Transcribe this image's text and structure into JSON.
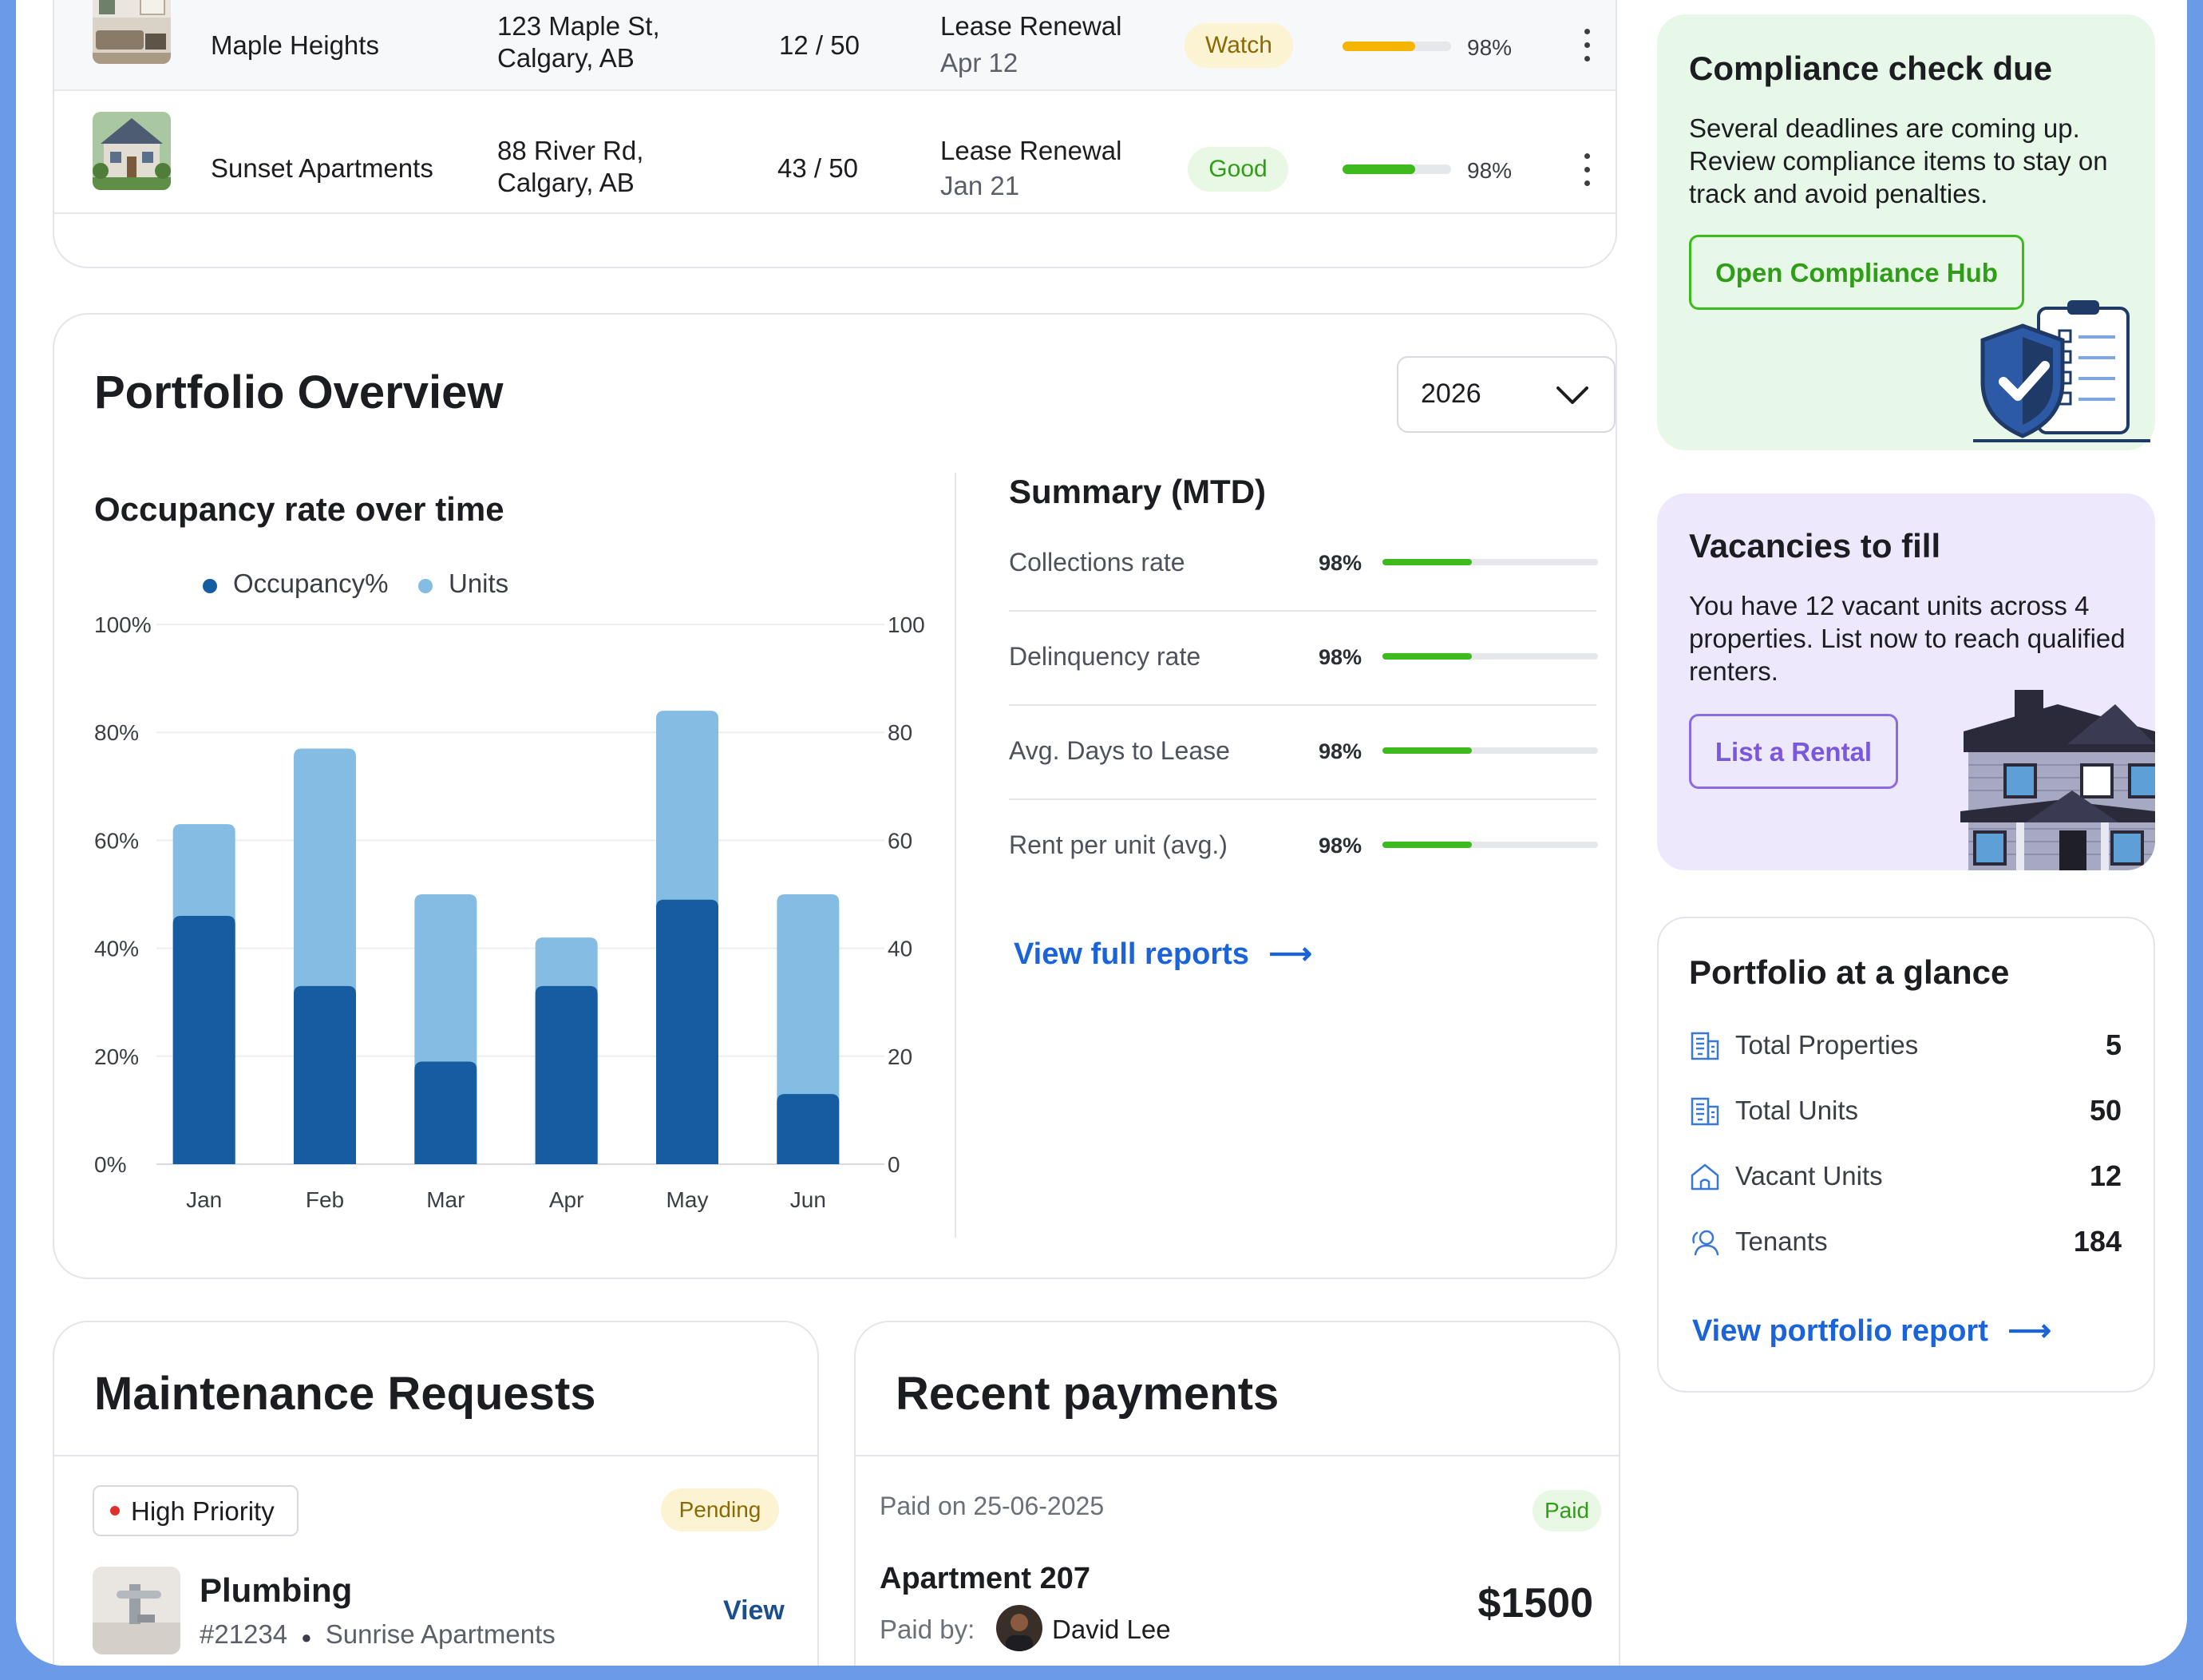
{
  "properties": [
    {
      "name": "Maple Heights",
      "address_line1": "123 Maple St,",
      "address_line2": "Calgary, AB",
      "units": "12 / 50",
      "event": "Lease Renewal",
      "date": "Apr  12",
      "status": "Watch",
      "status_color": "#f5b400",
      "score": 0.98,
      "score_label": "98%"
    },
    {
      "name": "Sunset Apartments",
      "address_line1": "88 River Rd,",
      "address_line2": "Calgary, AB",
      "units": "43 / 50",
      "event": "Lease Renewal",
      "date": "Jan  21",
      "status": "Good",
      "status_color": "#3cba1e",
      "score": 0.98,
      "score_label": "98%"
    }
  ],
  "overview": {
    "title": "Portfolio Overview",
    "year": "2026",
    "chart_title": "Occupancy rate over time",
    "summary_title": "Summary (MTD)",
    "summary": [
      {
        "label": "Collections rate",
        "value": "98%"
      },
      {
        "label": "Delinquency rate",
        "value": "98%"
      },
      {
        "label": "Avg. Days to Lease",
        "value": "98%"
      },
      {
        "label": "Rent per unit (avg.)",
        "value": "98%"
      }
    ],
    "reports_link": "View full reports",
    "arrow": "⟶"
  },
  "chart_data": {
    "type": "bar",
    "categories": [
      "Jan",
      "Feb",
      "Mar",
      "Apr",
      "May",
      "Jun"
    ],
    "series": [
      {
        "name": "Occupancy%",
        "values": [
          46,
          33,
          19,
          33,
          49,
          13
        ],
        "color": "#155ca0",
        "axis": "left"
      },
      {
        "name": "Units",
        "values": [
          63,
          77,
          50,
          42,
          84,
          50
        ],
        "color": "#85bce3",
        "axis": "right"
      }
    ],
    "y_left_ticks": [
      "100%",
      "80%",
      "60%",
      "40%",
      "20%",
      "0%"
    ],
    "y_right_ticks": [
      "100",
      "80",
      "60",
      "40",
      "20",
      "0"
    ],
    "ylim": [
      0,
      100
    ],
    "grid": true,
    "legend_position": "top-left"
  },
  "maintenance": {
    "title": "Maintenance Requests",
    "priority": "High Priority",
    "status": "Pending",
    "category": "Plumbing",
    "ticket": "#21234",
    "property": "Sunrise Apartments",
    "view": "View"
  },
  "payments": {
    "title": "Recent payments",
    "paid_on": "Paid on 25-06-2025",
    "status": "Paid",
    "unit": "Apartment 207",
    "paid_by_label": "Paid by:",
    "payer": "David Lee",
    "amount": "$1500"
  },
  "compliance": {
    "title": "Compliance check due",
    "body": "Several deadlines are coming up. Review compliance items to stay on track and avoid penalties.",
    "button": "Open Compliance Hub"
  },
  "vacancies": {
    "title": "Vacancies to fill",
    "body": "You have 12 vacant units across 4 properties. List now to reach qualified renters.",
    "button": "List a Rental"
  },
  "glance": {
    "title": "Portfolio at a glance",
    "items": [
      {
        "label": "Total Properties",
        "value": "5",
        "icon": "building-icon"
      },
      {
        "label": "Total Units",
        "value": "50",
        "icon": "building-icon"
      },
      {
        "label": "Vacant Units",
        "value": "12",
        "icon": "home-icon"
      },
      {
        "label": "Tenants",
        "value": "184",
        "icon": "people-icon"
      }
    ],
    "link": "View portfolio report",
    "arrow": "⟶"
  }
}
